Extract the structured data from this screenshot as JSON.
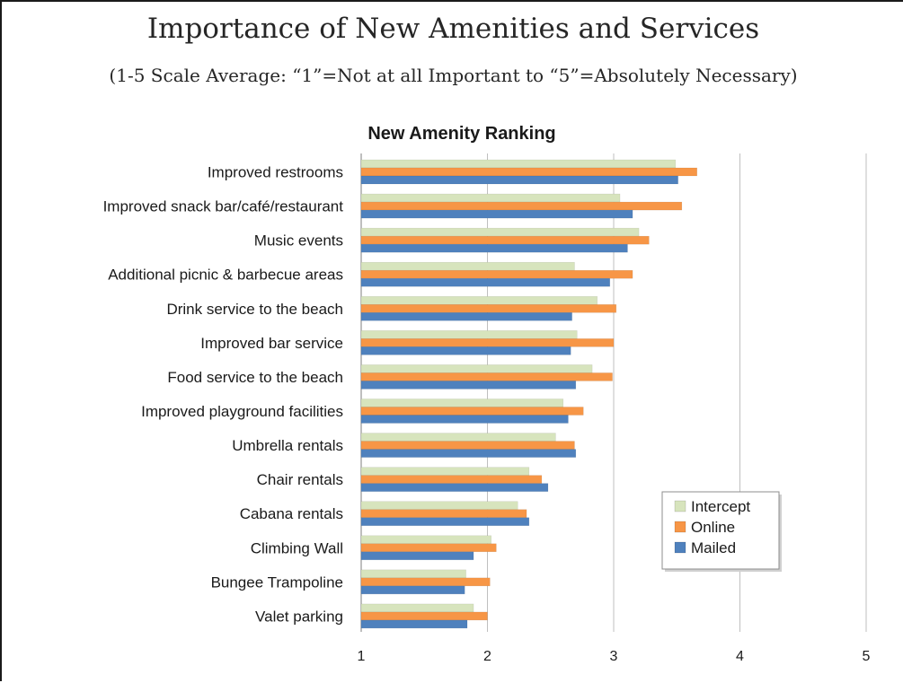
{
  "slide": {
    "title": "Importance of New Amenities and Services",
    "subtitle": "(1-5 Scale Average: “1”=Not at all Important to “5”=Absolutely Necessary)"
  },
  "chart_data": {
    "type": "bar",
    "orientation": "horizontal",
    "title": "New Amenity Ranking",
    "xlabel": "",
    "ylabel": "",
    "xlim": [
      1,
      5
    ],
    "xticks": [
      1,
      2,
      3,
      4,
      5
    ],
    "grid": true,
    "legend_position": "bottom-right",
    "categories": [
      "Improved restrooms",
      "Improved snack bar/café/restaurant",
      "Music events",
      "Additional picnic & barbecue areas",
      "Drink service to the beach",
      "Improved bar service",
      "Food service to the beach",
      "Improved playground facilities",
      "Umbrella rentals",
      "Chair rentals",
      "Cabana rentals",
      "Climbing Wall",
      "Bungee Trampoline",
      "Valet parking"
    ],
    "series": [
      {
        "name": "Intercept",
        "color": "#d7e4bd",
        "values": [
          3.49,
          3.05,
          3.2,
          2.69,
          2.87,
          2.71,
          2.83,
          2.6,
          2.54,
          2.33,
          2.24,
          2.03,
          1.83,
          1.89
        ]
      },
      {
        "name": "Online",
        "color": "#f79646",
        "values": [
          3.66,
          3.54,
          3.28,
          3.15,
          3.02,
          3.0,
          2.99,
          2.76,
          2.69,
          2.43,
          2.31,
          2.07,
          2.02,
          2.0
        ]
      },
      {
        "name": "Mailed",
        "color": "#4f81bd",
        "values": [
          3.51,
          3.15,
          3.11,
          2.97,
          2.67,
          2.66,
          2.7,
          2.64,
          2.7,
          2.48,
          2.33,
          1.89,
          1.82,
          1.84
        ]
      }
    ]
  }
}
